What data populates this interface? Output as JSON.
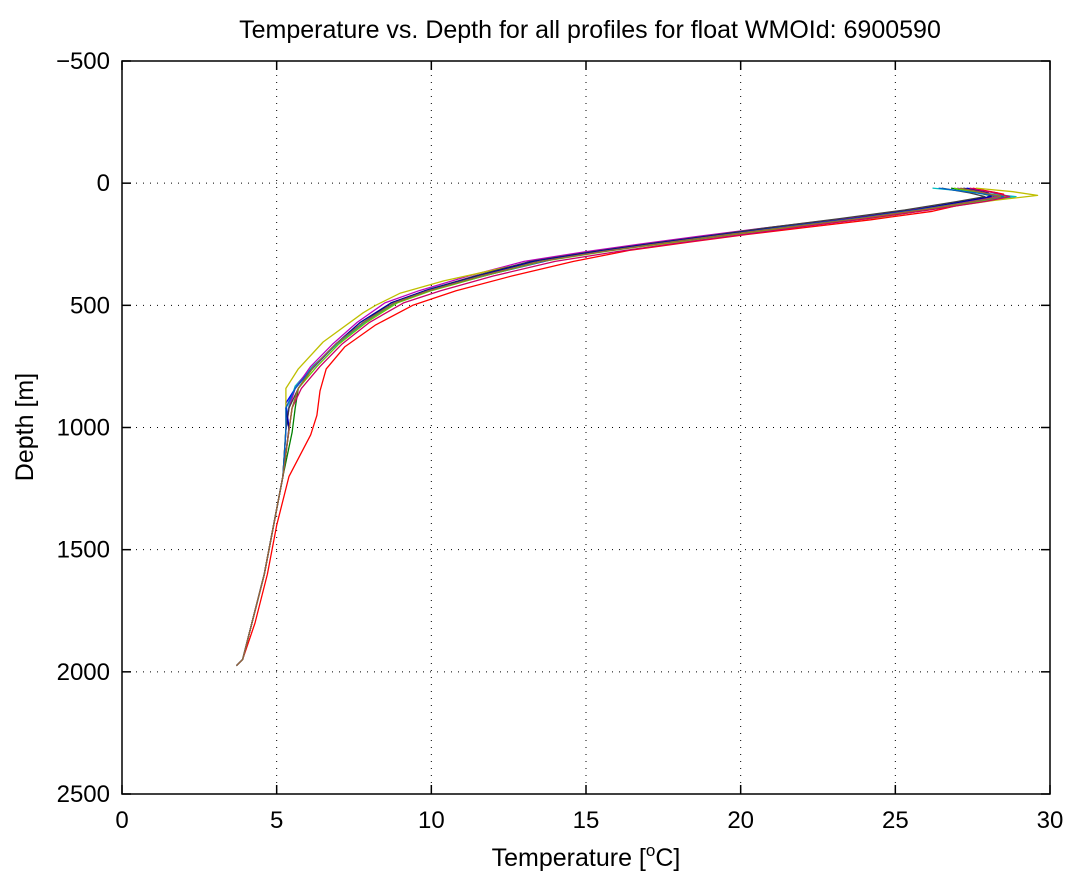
{
  "chart_data": {
    "type": "line",
    "title": "Temperature vs. Depth for all profiles for float WMOId: 6900590",
    "xlabel_main": "Temperature [",
    "xlabel_sup": "o",
    "xlabel_end": "C]",
    "ylabel": "Depth [m]",
    "xlim": [
      0,
      30
    ],
    "ylim": [
      -500,
      2500
    ],
    "y_reversed": true,
    "grid": true,
    "xticks": [
      0,
      5,
      10,
      15,
      20,
      25,
      30
    ],
    "xtick_labels": [
      "0",
      "5",
      "10",
      "15",
      "20",
      "25",
      "30"
    ],
    "yticks": [
      -500,
      0,
      500,
      1000,
      1500,
      2000,
      2500
    ],
    "ytick_labels": [
      "−500",
      "0",
      "500",
      "1000",
      "1500",
      "2000",
      "2500"
    ],
    "series": [
      {
        "color": "#0000ff",
        "x": [
          27.3,
          28.3,
          28.0,
          27.8,
          26.5,
          24.5,
          22.0,
          19.8,
          18.0,
          16.0,
          14.0,
          12.0,
          10.2,
          9.0,
          8.0,
          7.0,
          6.3,
          5.7,
          5.3,
          5.4,
          5.2,
          4.9,
          4.6,
          4.2,
          3.9,
          3.7
        ],
        "y": [
          20,
          40,
          55,
          70,
          100,
          140,
          175,
          210,
          240,
          270,
          310,
          370,
          430,
          480,
          560,
          650,
          740,
          820,
          900,
          1000,
          1200,
          1400,
          1600,
          1800,
          1950,
          1975
        ]
      },
      {
        "color": "#008000",
        "x": [
          26.8,
          27.5,
          28.4,
          27.6,
          25.8,
          23.8,
          21.5,
          19.2,
          17.4,
          15.4,
          13.4,
          11.5,
          9.9,
          8.8,
          7.8,
          6.9,
          6.2,
          5.7,
          5.6,
          5.5,
          5.2,
          4.9,
          4.6,
          4.2,
          3.9,
          3.7
        ],
        "y": [
          20,
          35,
          60,
          75,
          110,
          145,
          180,
          215,
          245,
          280,
          320,
          380,
          440,
          490,
          570,
          660,
          750,
          840,
          920,
          1020,
          1200,
          1400,
          1600,
          1800,
          1950,
          1975
        ]
      },
      {
        "color": "#ff0000",
        "x": [
          27.5,
          28.5,
          28.2,
          27.4,
          26.2,
          24.2,
          22.2,
          20.2,
          18.4,
          16.4,
          14.6,
          12.6,
          10.8,
          9.4,
          8.2,
          7.2,
          6.6,
          6.4,
          6.3,
          6.1,
          5.4,
          5.0,
          4.7,
          4.3,
          3.9,
          3.7
        ],
        "y": [
          20,
          45,
          60,
          80,
          115,
          150,
          180,
          210,
          240,
          275,
          320,
          380,
          440,
          500,
          580,
          670,
          760,
          850,
          950,
          1030,
          1200,
          1400,
          1600,
          1800,
          1950,
          1975
        ]
      },
      {
        "color": "#00bfbf",
        "x": [
          26.2,
          27.8,
          28.9,
          28.0,
          26.0,
          24.0,
          21.7,
          19.5,
          17.7,
          15.7,
          13.8,
          11.8,
          10.0,
          8.9,
          7.9,
          7.0,
          6.2,
          5.6,
          5.4,
          5.3,
          5.2,
          4.9,
          4.6,
          4.2,
          3.9,
          3.7
        ],
        "y": [
          20,
          40,
          55,
          70,
          105,
          140,
          170,
          205,
          235,
          270,
          310,
          370,
          430,
          485,
          565,
          655,
          745,
          830,
          910,
          1010,
          1200,
          1400,
          1600,
          1800,
          1950,
          1975
        ]
      },
      {
        "color": "#bf00bf",
        "x": [
          27.0,
          27.9,
          28.3,
          27.3,
          25.5,
          23.3,
          21.0,
          18.8,
          17.0,
          15.0,
          13.0,
          11.2,
          9.6,
          8.5,
          7.6,
          6.8,
          6.1,
          5.6,
          5.4,
          5.3,
          5.2,
          4.9,
          4.6,
          4.2,
          3.9,
          3.7
        ],
        "y": [
          20,
          40,
          55,
          75,
          110,
          145,
          180,
          215,
          245,
          280,
          320,
          380,
          440,
          490,
          570,
          660,
          750,
          840,
          920,
          1010,
          1200,
          1400,
          1600,
          1800,
          1950,
          1975
        ]
      },
      {
        "color": "#bfbf00",
        "x": [
          27.6,
          28.8,
          29.6,
          28.2,
          26.3,
          24.5,
          22.4,
          20.3,
          18.5,
          16.4,
          14.2,
          12.2,
          10.4,
          9.0,
          8.2,
          7.8,
          6.5,
          5.7,
          5.3,
          5.3,
          5.2,
          4.9,
          4.6,
          4.2,
          3.9,
          3.7
        ],
        "y": [
          20,
          35,
          50,
          70,
          105,
          140,
          170,
          205,
          235,
          265,
          300,
          350,
          400,
          450,
          500,
          530,
          650,
          760,
          840,
          1000,
          1200,
          1400,
          1600,
          1800,
          1950,
          1975
        ]
      },
      {
        "color": "#404040",
        "x": [
          26.5,
          27.4,
          27.9,
          27.0,
          25.3,
          23.2,
          21.0,
          19.0,
          17.2,
          15.2,
          13.2,
          11.4,
          9.8,
          8.7,
          7.8,
          6.9,
          6.2,
          5.7,
          5.4,
          5.3,
          5.2,
          4.9,
          4.6,
          4.2,
          3.9,
          3.7
        ],
        "y": [
          20,
          40,
          55,
          75,
          110,
          145,
          180,
          215,
          245,
          280,
          320,
          380,
          440,
          490,
          570,
          660,
          750,
          840,
          920,
          1010,
          1200,
          1400,
          1600,
          1800,
          1950,
          1975
        ]
      },
      {
        "color": "#000099",
        "x": [
          27.2,
          28.0,
          28.1,
          27.2,
          25.6,
          23.6,
          21.3,
          19.1,
          17.3,
          15.3,
          13.3,
          11.5,
          9.8,
          8.7,
          7.7,
          6.9,
          6.2,
          5.6,
          5.3,
          5.4,
          5.2,
          4.9,
          4.6,
          4.2,
          3.9,
          3.7
        ],
        "y": [
          20,
          40,
          55,
          75,
          110,
          145,
          180,
          215,
          245,
          280,
          320,
          380,
          440,
          490,
          570,
          660,
          750,
          840,
          920,
          1010,
          1200,
          1400,
          1600,
          1800,
          1950,
          1975
        ]
      },
      {
        "color": "#66cc00",
        "x": [
          26.9,
          27.7,
          28.6,
          27.7,
          25.9,
          23.9,
          21.6,
          19.4,
          17.6,
          15.6,
          13.6,
          11.7,
          10.0,
          8.9,
          7.9,
          7.0,
          6.3,
          5.7,
          5.5,
          5.4,
          5.2,
          4.9,
          4.6,
          4.2,
          3.9,
          3.7
        ],
        "y": [
          20,
          40,
          55,
          75,
          110,
          145,
          180,
          215,
          245,
          280,
          320,
          380,
          440,
          490,
          570,
          660,
          750,
          840,
          920,
          1010,
          1200,
          1400,
          1600,
          1800,
          1950,
          1975
        ]
      },
      {
        "color": "#cc0066",
        "x": [
          27.4,
          28.2,
          28.7,
          27.9,
          26.1,
          24.1,
          21.9,
          19.8,
          18.0,
          16.0,
          14.0,
          12.0,
          10.3,
          9.1,
          8.0,
          7.1,
          6.4,
          5.8,
          5.5,
          5.4,
          5.2,
          4.9,
          4.6,
          4.2,
          3.9,
          3.7
        ],
        "y": [
          20,
          40,
          55,
          75,
          110,
          145,
          180,
          215,
          245,
          280,
          320,
          380,
          440,
          490,
          570,
          660,
          750,
          840,
          920,
          1010,
          1200,
          1400,
          1600,
          1800,
          1950,
          1975
        ]
      },
      {
        "color": "#0066cc",
        "x": [
          26.4,
          27.6,
          28.5,
          27.5,
          25.7,
          23.7,
          21.4,
          19.3,
          17.5,
          15.5,
          13.5,
          11.6,
          9.9,
          8.8,
          7.8,
          6.9,
          6.2,
          5.6,
          5.3,
          5.3,
          5.2,
          4.9,
          4.6,
          4.2,
          3.9,
          3.7
        ],
        "y": [
          20,
          40,
          55,
          75,
          110,
          145,
          180,
          215,
          245,
          280,
          320,
          380,
          440,
          490,
          570,
          660,
          750,
          840,
          920,
          1010,
          1200,
          1400,
          1600,
          1800,
          1950,
          1975
        ]
      },
      {
        "color": "#996633",
        "x": [
          27.1,
          27.9,
          28.4,
          27.5,
          25.8,
          23.8,
          21.5,
          19.3,
          17.5,
          15.5,
          13.5,
          11.6,
          9.9,
          8.8,
          7.8,
          6.9,
          6.2,
          5.7,
          5.5,
          5.4,
          5.2,
          4.9,
          4.6,
          4.2,
          3.9,
          3.7
        ],
        "y": [
          20,
          40,
          55,
          75,
          110,
          145,
          180,
          215,
          245,
          280,
          320,
          380,
          440,
          490,
          570,
          660,
          750,
          840,
          920,
          1010,
          1200,
          1400,
          1600,
          1800,
          1950,
          1975
        ]
      }
    ]
  }
}
